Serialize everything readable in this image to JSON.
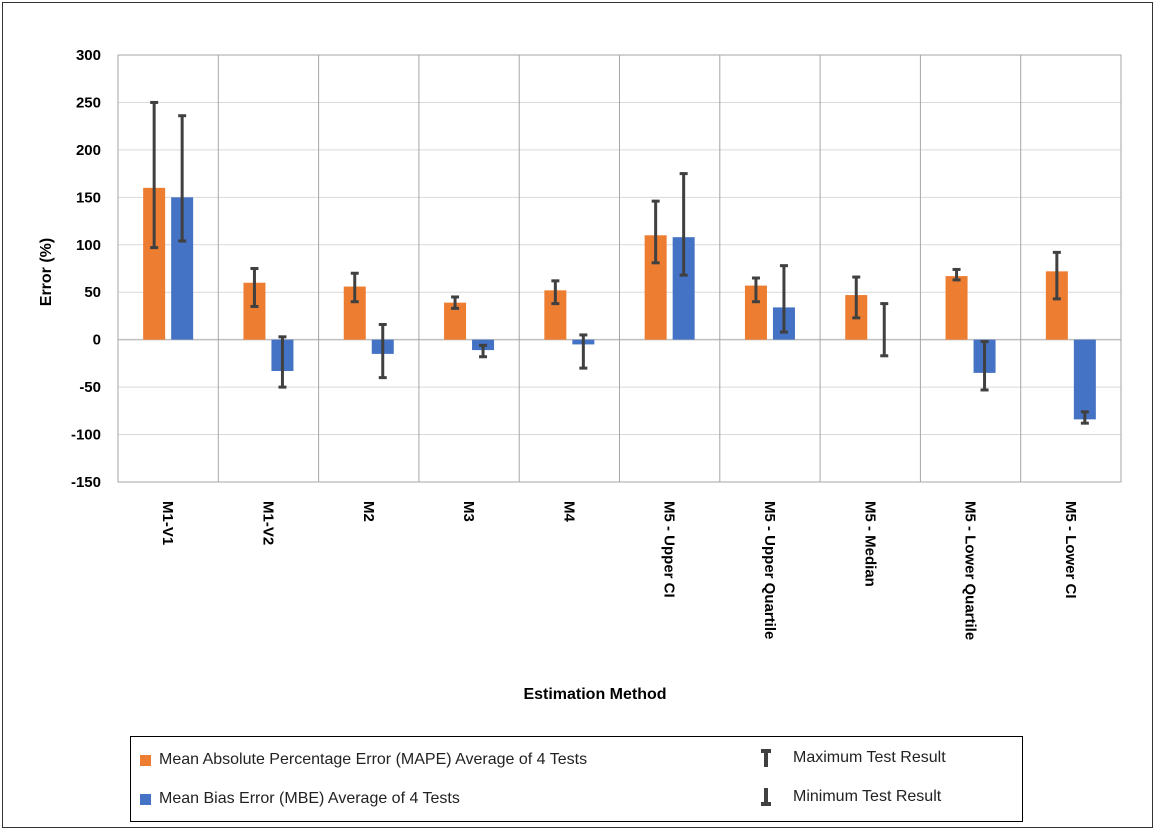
{
  "chart_data": {
    "type": "bar",
    "ylabel": "Error (%)",
    "xlabel": "Estimation Method",
    "ylim": [
      -150,
      300
    ],
    "yticks": [
      300,
      250,
      200,
      150,
      100,
      50,
      0,
      -50,
      -100,
      -150
    ],
    "ytick_labels": [
      "300",
      "250",
      "200",
      "150",
      "100",
      "50",
      "0",
      "-50",
      "-100",
      "-150"
    ],
    "grid": true,
    "legend_position": "bottom",
    "categories": [
      "M1-V1",
      "M1-V2",
      "M2",
      "M3",
      "M4",
      "M5 - Upper CI",
      "M5 - Upper Quartile",
      "M5 - Median",
      "M5 - Lower Quartile",
      "M5 - Lower CI"
    ],
    "series": [
      {
        "name": "Mean Absolute Percentage Error (MAPE) Average of 4 Tests",
        "color": "#ED7D31",
        "values": [
          160,
          60,
          56,
          39,
          52,
          110,
          57,
          47,
          67,
          72
        ],
        "max": [
          250,
          75,
          70,
          45,
          62,
          146,
          65,
          66,
          74,
          92
        ],
        "min": [
          97,
          35,
          40,
          33,
          38,
          81,
          40,
          23,
          63,
          43
        ]
      },
      {
        "name": "Mean Bias Error (MBE) Average of 4 Tests",
        "color": "#4472C4",
        "values": [
          150,
          -33,
          -15,
          -11,
          -5,
          108,
          34,
          0,
          -35,
          -84
        ],
        "max": [
          236,
          3,
          16,
          -6,
          5,
          175,
          78,
          38,
          -2,
          -76
        ],
        "min": [
          104,
          -50,
          -40,
          -18,
          -30,
          68,
          8,
          -17,
          -53,
          -88
        ]
      }
    ],
    "errorbar_legend": {
      "max_label": "Maximum Test Result",
      "min_label": "Minimum Test Result"
    }
  },
  "colors": {
    "gridline": "#D9D9D9",
    "category_divider": "#A6A6A6",
    "errorbar": "#404040"
  }
}
